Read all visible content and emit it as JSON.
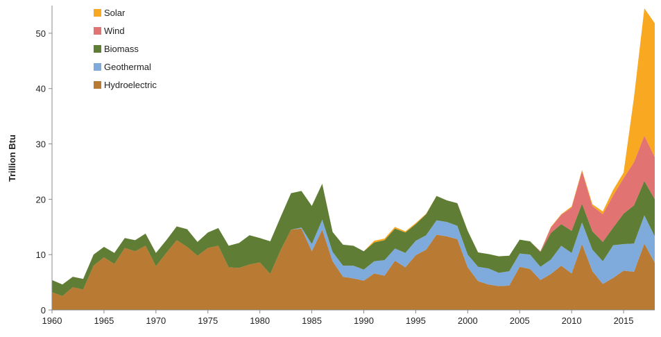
{
  "chart_data": {
    "type": "stacked_area",
    "y_label": "Trillion Btu",
    "x": [
      1960,
      1961,
      1962,
      1963,
      1964,
      1965,
      1966,
      1967,
      1968,
      1969,
      1970,
      1971,
      1972,
      1973,
      1974,
      1975,
      1976,
      1977,
      1978,
      1979,
      1980,
      1981,
      1982,
      1983,
      1984,
      1985,
      1986,
      1987,
      1988,
      1989,
      1990,
      1991,
      1992,
      1993,
      1994,
      1995,
      1996,
      1997,
      1998,
      1999,
      2000,
      2001,
      2002,
      2003,
      2004,
      2005,
      2006,
      2007,
      2008,
      2009,
      2010,
      2011,
      2012,
      2013,
      2014,
      2015,
      2016,
      2017,
      2018
    ],
    "xlim": [
      1960,
      2018
    ],
    "xticks": [
      1960,
      1965,
      1970,
      1975,
      1980,
      1985,
      1990,
      1995,
      2000,
      2005,
      2010,
      2015
    ],
    "ylim": [
      0,
      55
    ],
    "yticks": [
      0,
      10,
      20,
      30,
      40,
      50
    ],
    "legend": "top-left",
    "series": [
      {
        "name": "Hydroelectric",
        "color": "#b97a33",
        "values": [
          3.2,
          2.5,
          4.1,
          3.7,
          8.0,
          9.5,
          8.3,
          11.2,
          10.6,
          11.6,
          7.9,
          10.3,
          12.6,
          11.4,
          9.8,
          11.2,
          11.6,
          7.7,
          7.6,
          8.2,
          8.6,
          6.5,
          10.8,
          14.5,
          14.7,
          10.6,
          14.5,
          8.8,
          6.0,
          5.7,
          5.3,
          6.6,
          6.2,
          8.9,
          7.7,
          9.9,
          10.9,
          13.6,
          13.3,
          12.8,
          7.7,
          5.2,
          4.6,
          4.3,
          4.4,
          7.8,
          7.4,
          5.4,
          6.5,
          8.0,
          6.6,
          11.9,
          7.0,
          4.7,
          5.8,
          7.1,
          6.9,
          12.0,
          8.5
        ]
      },
      {
        "name": "Geothermal",
        "color": "#7eaadc",
        "values": [
          0,
          0,
          0,
          0,
          0,
          0,
          0,
          0,
          0,
          0,
          0,
          0,
          0,
          0,
          0,
          0,
          0,
          0,
          0,
          0,
          0,
          0,
          0,
          0,
          0.2,
          1.3,
          1.8,
          1.7,
          2.0,
          2.3,
          2.0,
          2.2,
          2.8,
          2.2,
          2.6,
          2.6,
          2.6,
          2.6,
          2.6,
          2.4,
          2.3,
          2.6,
          2.9,
          2.4,
          2.6,
          2.4,
          2.6,
          2.4,
          2.6,
          3.6,
          3.7,
          3.9,
          3.9,
          4.1,
          5.9,
          4.8,
          5.1,
          5.1,
          4.8
        ]
      },
      {
        "name": "Biomass",
        "color": "#5f7d34",
        "values": [
          2.2,
          2.1,
          1.9,
          1.9,
          2.0,
          1.9,
          2.0,
          1.8,
          2.0,
          2.2,
          2.4,
          2.3,
          2.5,
          3.2,
          2.5,
          2.8,
          3.2,
          3.9,
          4.5,
          5.3,
          4.4,
          5.9,
          6.0,
          6.6,
          6.6,
          6.9,
          6.5,
          3.6,
          3.8,
          3.6,
          3.3,
          3.4,
          3.6,
          3.6,
          3.7,
          3.0,
          3.8,
          4.4,
          3.9,
          4.1,
          4.3,
          2.6,
          2.6,
          3.0,
          2.8,
          2.5,
          2.4,
          2.7,
          4.8,
          3.9,
          4.0,
          3.4,
          3.3,
          3.5,
          3.2,
          5.5,
          6.9,
          6.2,
          6.7
        ]
      },
      {
        "name": "Wind",
        "color": "#e27373",
        "values": [
          0,
          0,
          0,
          0,
          0,
          0,
          0,
          0,
          0,
          0,
          0,
          0,
          0,
          0,
          0,
          0,
          0,
          0,
          0,
          0,
          0,
          0,
          0,
          0,
          0,
          0,
          0,
          0,
          0,
          0,
          0,
          0,
          0,
          0,
          0,
          0,
          0,
          0,
          0,
          0,
          0,
          0,
          0,
          0,
          0,
          0,
          0,
          0.1,
          1.0,
          1.7,
          4.2,
          5.9,
          4.6,
          5.0,
          5.8,
          6.4,
          7.8,
          8.2,
          7.6
        ]
      },
      {
        "name": "Solar",
        "color": "#f9a822",
        "values": [
          0,
          0,
          0,
          0,
          0,
          0,
          0,
          0,
          0,
          0,
          0,
          0,
          0,
          0,
          0,
          0,
          0,
          0,
          0,
          0,
          0,
          0,
          0,
          0,
          0,
          0,
          0,
          0,
          0,
          0,
          0,
          0.3,
          0.3,
          0.3,
          0.2,
          0.2,
          0.1,
          0,
          0,
          0,
          0,
          0,
          0,
          0,
          0,
          0,
          0,
          0,
          0.1,
          0.1,
          0.2,
          0.2,
          0.3,
          0.5,
          1.0,
          1.0,
          11.7,
          23.0,
          24.2
        ]
      }
    ]
  }
}
